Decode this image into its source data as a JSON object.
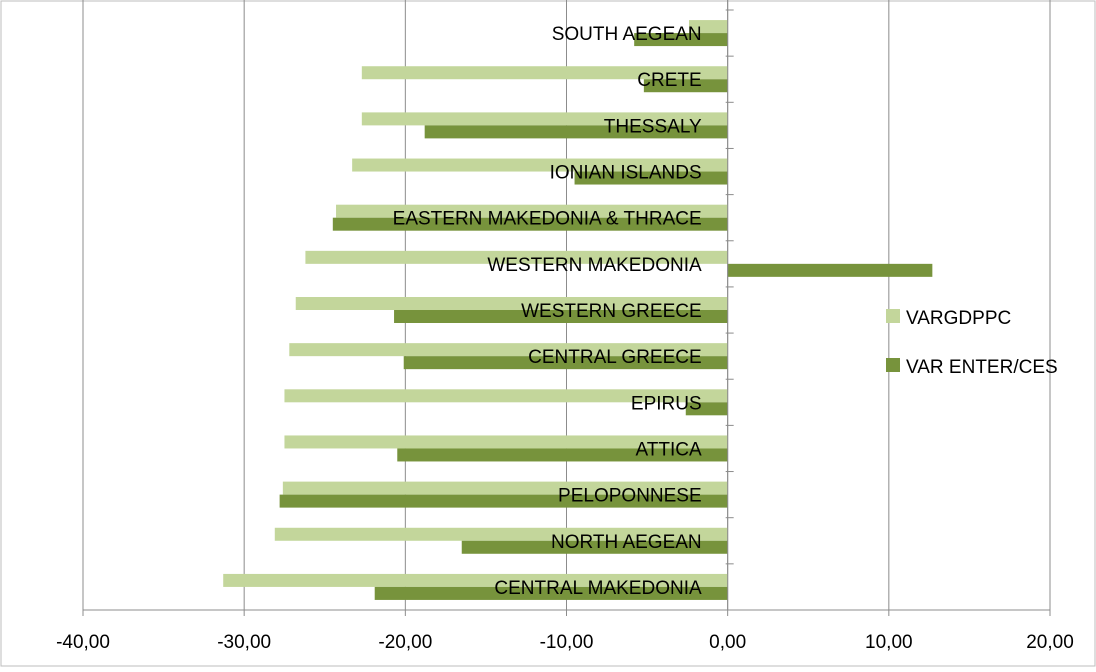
{
  "chart_data": {
    "type": "bar",
    "orientation": "horizontal",
    "title": "",
    "xlabel": "",
    "ylabel": "",
    "xlim": [
      -40,
      20
    ],
    "x_ticks": [
      -40,
      -30,
      -20,
      -10,
      0,
      10,
      20
    ],
    "x_tick_labels": [
      "-40,00",
      "-30,00",
      "-20,00",
      "-10,00",
      "0,00",
      "10,00",
      "20,00"
    ],
    "grid": "vertical major gridlines",
    "legend_position": "right",
    "categories": [
      "SOUTH AEGEAN",
      "CRETE",
      "THESSALY",
      "IONIAN ISLANDS",
      "EASTERN MAKEDONIA & THRACE",
      "WESTERN MAKEDONIA",
      "WESTERN GREECE",
      "CENTRAL GREECE",
      "EPIRUS",
      "ATTICA",
      "PELOPONNESE",
      "NORTH AEGEAN",
      "CENTRAL MAKEDONIA"
    ],
    "series": [
      {
        "name": "VARGDPPC",
        "color": "#c3d69b",
        "values": [
          -2.4,
          -22.7,
          -22.7,
          -23.3,
          -24.3,
          -26.2,
          -26.8,
          -27.2,
          -27.5,
          -27.5,
          -27.6,
          -28.1,
          -31.3
        ]
      },
      {
        "name": "VAR ENTER/CES",
        "color": "#77933c",
        "values": [
          -5.8,
          -5.2,
          -18.8,
          -9.5,
          -24.5,
          12.7,
          -20.7,
          -20.1,
          -2.6,
          -20.5,
          -27.8,
          -16.5,
          -21.9
        ]
      }
    ]
  }
}
